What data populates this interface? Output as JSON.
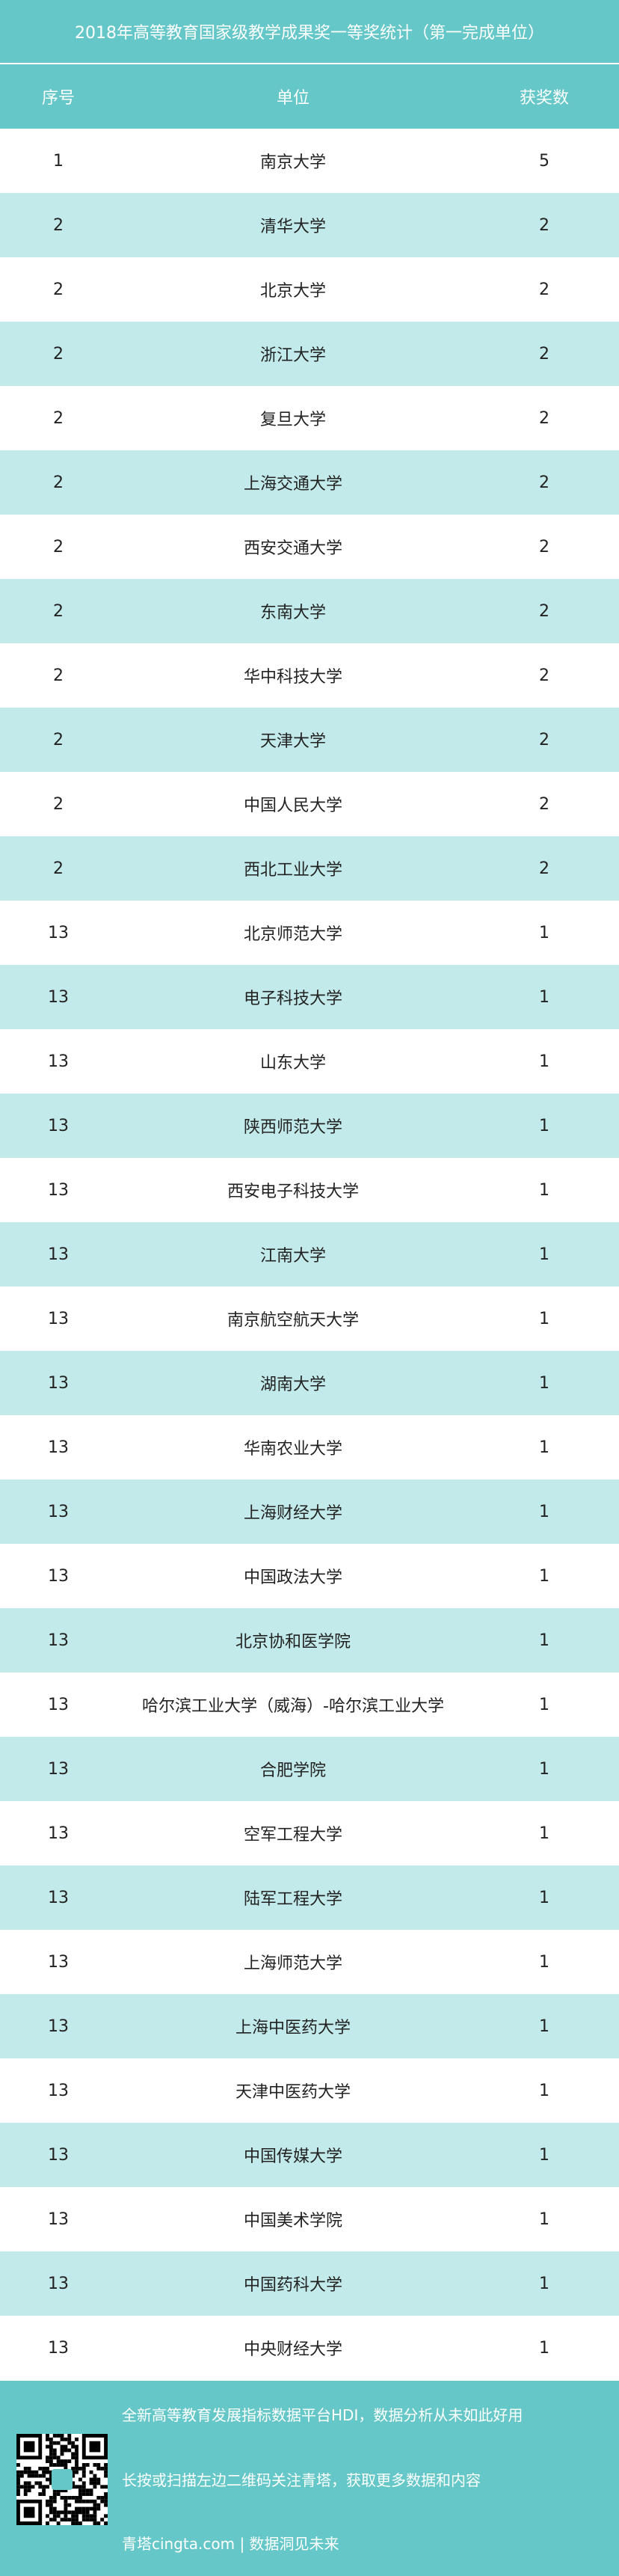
{
  "title": "2018年高等教育国家级教学成果奖一等奖统计（第一完成单位）",
  "headers": [
    "序号",
    "单位",
    "获奖数"
  ],
  "rows": [
    [
      "1",
      "南京大学",
      "5"
    ],
    [
      "2",
      "清华大学",
      "2"
    ],
    [
      "2",
      "北京大学",
      "2"
    ],
    [
      "2",
      "浙江大学",
      "2"
    ],
    [
      "2",
      "复旦大学",
      "2"
    ],
    [
      "2",
      "上海交通大学",
      "2"
    ],
    [
      "2",
      "西安交通大学",
      "2"
    ],
    [
      "2",
      "东南大学",
      "2"
    ],
    [
      "2",
      "华中科技大学",
      "2"
    ],
    [
      "2",
      "天津大学",
      "2"
    ],
    [
      "2",
      "中国人民大学",
      "2"
    ],
    [
      "2",
      "西北工业大学",
      "2"
    ],
    [
      "13",
      "北京师范大学",
      "1"
    ],
    [
      "13",
      "电子科技大学",
      "1"
    ],
    [
      "13",
      "山东大学",
      "1"
    ],
    [
      "13",
      "陕西师范大学",
      "1"
    ],
    [
      "13",
      "西安电子科技大学",
      "1"
    ],
    [
      "13",
      "江南大学",
      "1"
    ],
    [
      "13",
      "南京航空航天大学",
      "1"
    ],
    [
      "13",
      "湖南大学",
      "1"
    ],
    [
      "13",
      "华南农业大学",
      "1"
    ],
    [
      "13",
      "上海财经大学",
      "1"
    ],
    [
      "13",
      "中国政法大学",
      "1"
    ],
    [
      "13",
      "北京协和医学院",
      "1"
    ],
    [
      "13",
      "哈尔滨工业大学（威海）-哈尔滨工业大学",
      "1"
    ],
    [
      "13",
      "合肥学院",
      "1"
    ],
    [
      "13",
      "空军工程大学",
      "1"
    ],
    [
      "13",
      "陆军工程大学",
      "1"
    ],
    [
      "13",
      "上海师范大学",
      "1"
    ],
    [
      "13",
      "上海中医药大学",
      "1"
    ],
    [
      "13",
      "天津中医药大学",
      "1"
    ],
    [
      "13",
      "中国传媒大学",
      "1"
    ],
    [
      "13",
      "中国美术学院",
      "1"
    ],
    [
      "13",
      "中国药科大学",
      "1"
    ],
    [
      "13",
      "中央财经大学",
      "1"
    ]
  ],
  "footer": {
    "line1": "全新高等教育发展指标数据平台HDI，数据分析从未如此好用",
    "line2": "长按或扫描左边二维码关注青塔，获取更多数据和内容",
    "line3": "青塔cingta.com | 数据洞见未来",
    "qr_icon": "qr-code"
  },
  "colors": {
    "accent": "#66c7c9",
    "row_alt": "#c3eaea"
  }
}
